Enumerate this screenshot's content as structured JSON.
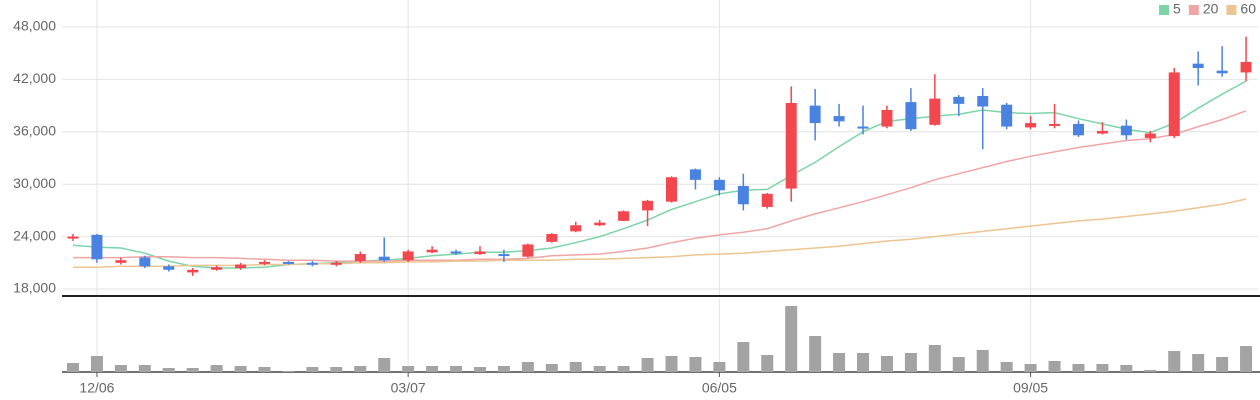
{
  "chart_data": {
    "type": "candlestick",
    "categories": [
      null,
      "12/06",
      null,
      null,
      null,
      null,
      null,
      null,
      null,
      null,
      null,
      null,
      null,
      null,
      "03/07",
      null,
      null,
      null,
      null,
      null,
      null,
      null,
      null,
      null,
      null,
      null,
      null,
      "06/05",
      null,
      null,
      null,
      null,
      null,
      null,
      null,
      null,
      null,
      null,
      null,
      null,
      "09/05",
      null,
      null,
      null,
      null,
      null,
      null,
      null,
      null,
      null
    ],
    "open": [
      23800,
      24200,
      21000,
      21600,
      20600,
      19900,
      20200,
      20400,
      20900,
      21100,
      21000,
      20800,
      21200,
      21700,
      21300,
      22200,
      22300,
      22000,
      22000,
      21700,
      23400,
      24600,
      25300,
      25800,
      27000,
      28000,
      31700,
      30500,
      29800,
      27400,
      29500,
      39000,
      37800,
      36600,
      36600,
      39400,
      36800,
      40000,
      40100,
      39100,
      36500,
      36700,
      36900,
      35800,
      36700,
      35300,
      35500,
      43800,
      43000,
      42800
    ],
    "high": [
      24300,
      24300,
      21600,
      21800,
      20800,
      20400,
      20700,
      21000,
      21300,
      21200,
      21200,
      21200,
      22300,
      23900,
      22500,
      22900,
      22500,
      22900,
      22500,
      23200,
      24400,
      25700,
      25900,
      27000,
      28200,
      30900,
      31800,
      30800,
      31200,
      29000,
      41200,
      40900,
      39200,
      39000,
      39000,
      41000,
      42600,
      40200,
      41000,
      39300,
      37800,
      39200,
      37300,
      37100,
      37400,
      36100,
      43300,
      45200,
      45800,
      46900
    ],
    "low": [
      23500,
      21000,
      20800,
      20400,
      20000,
      19500,
      20100,
      20200,
      20700,
      20800,
      20600,
      20600,
      21000,
      21100,
      21100,
      22100,
      21900,
      21900,
      21100,
      21600,
      23300,
      24500,
      25200,
      25800,
      25200,
      27900,
      29400,
      28700,
      27000,
      27200,
      28000,
      35000,
      36600,
      35700,
      36400,
      36100,
      36700,
      37800,
      34000,
      36300,
      36300,
      36400,
      35400,
      35700,
      35100,
      34800,
      35300,
      41300,
      42300,
      41800
    ],
    "close": [
      24000,
      21400,
      21300,
      20600,
      20200,
      20200,
      20500,
      20800,
      21100,
      20900,
      20800,
      21000,
      22000,
      21300,
      22300,
      22500,
      22100,
      22300,
      21800,
      23100,
      24300,
      25300,
      25600,
      26900,
      28100,
      30800,
      30500,
      29300,
      27700,
      28900,
      39300,
      37000,
      37200,
      36400,
      38500,
      36300,
      39800,
      39200,
      38900,
      36600,
      37000,
      36900,
      35600,
      36100,
      35600,
      35800,
      42800,
      43300,
      42700,
      44000
    ],
    "up_color": "#f2474e",
    "down_color": "#4a82e2",
    "volume": {
      "color": "#a3a3a3",
      "values": [
        9,
        16,
        7,
        7,
        4,
        4,
        7,
        6,
        5,
        1,
        5,
        5,
        6,
        14,
        6,
        6,
        6,
        5,
        6,
        10,
        8,
        10,
        6,
        6,
        14,
        16,
        15,
        10,
        30,
        17,
        66,
        36,
        19,
        19,
        16,
        19,
        27,
        15,
        22,
        10,
        8,
        11,
        8,
        8,
        7,
        2,
        21,
        18,
        15,
        26
      ]
    },
    "series": [
      {
        "name": "5",
        "color": "#7dd4a8",
        "values": [
          23000,
          22800,
          22700,
          22100,
          21200,
          20600,
          20400,
          20400,
          20500,
          20800,
          20900,
          21000,
          21200,
          21300,
          21500,
          21800,
          22000,
          22200,
          22200,
          22400,
          22700,
          23300,
          24000,
          24900,
          25900,
          27100,
          28000,
          28900,
          29300,
          29400,
          31000,
          32500,
          34300,
          36000,
          37200,
          37500,
          37800,
          38000,
          38500,
          38200,
          38100,
          38200,
          37500,
          36900,
          36300,
          35900,
          37000,
          38700,
          40300,
          41800
        ]
      },
      {
        "name": "20",
        "color": "#f0a5a5",
        "values": [
          21600,
          21600,
          21600,
          21700,
          21700,
          21600,
          21600,
          21500,
          21400,
          21300,
          21300,
          21200,
          21200,
          21200,
          21300,
          21300,
          21300,
          21400,
          21400,
          21500,
          21800,
          21900,
          22000,
          22300,
          22700,
          23300,
          23800,
          24200,
          24500,
          24900,
          25800,
          26600,
          27300,
          28000,
          28800,
          29600,
          30500,
          31200,
          31900,
          32600,
          33200,
          33700,
          34200,
          34600,
          35000,
          35200,
          35700,
          36600,
          37400,
          38400
        ]
      },
      {
        "name": "60",
        "color": "#ecc592",
        "values": [
          20500,
          20500,
          20600,
          20600,
          20600,
          20700,
          20700,
          20700,
          20800,
          20800,
          20900,
          20900,
          21000,
          21000,
          21100,
          21100,
          21200,
          21200,
          21300,
          21300,
          21300,
          21400,
          21400,
          21500,
          21600,
          21700,
          21900,
          22000,
          22100,
          22300,
          22500,
          22700,
          22900,
          23200,
          23500,
          23700,
          24000,
          24300,
          24600,
          24900,
          25200,
          25500,
          25800,
          26000,
          26300,
          26600,
          26900,
          27300,
          27700,
          28300
        ]
      }
    ],
    "ylim": [
      18000,
      48000
    ],
    "yticks": [
      {
        "value": 18000,
        "label": "18,000"
      },
      {
        "value": 24000,
        "label": "24,000"
      },
      {
        "value": 30000,
        "label": "30,000"
      },
      {
        "value": 36000,
        "label": "36,000"
      },
      {
        "value": 42000,
        "label": "42,000"
      },
      {
        "value": 48000,
        "label": "48,000"
      }
    ],
    "grid": true,
    "legend": "top-right"
  }
}
